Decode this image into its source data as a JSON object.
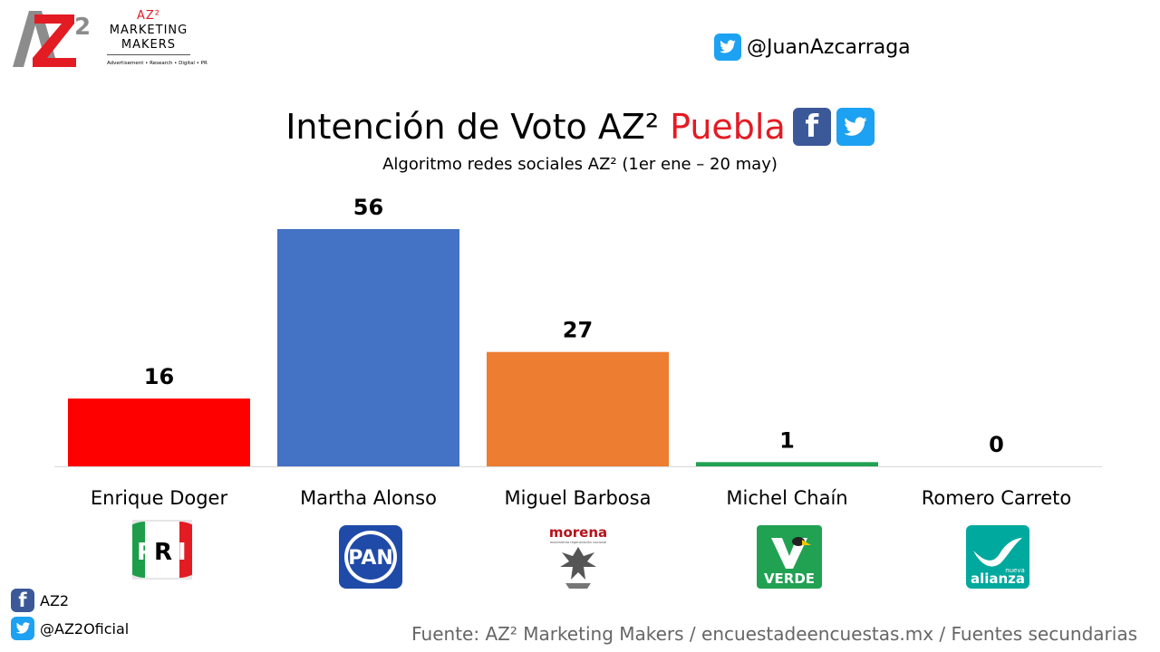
{
  "header": {
    "brand_top": "AZ²",
    "brand_line1": "MARKETING",
    "brand_line2": "MAKERS",
    "brand_tagline": "Advertisement • Research • Digital • PR",
    "twitter_handle": "@JuanAzcarraga"
  },
  "title": {
    "main": "Intención de Voto AZ²",
    "highlight": "Puebla",
    "subtitle": "Algoritmo redes sociales AZ² (1er ene – 20 may)"
  },
  "chart_data": {
    "type": "bar",
    "title": "Intención de Voto AZ² Puebla",
    "subtitle": "Algoritmo redes sociales AZ² (1er ene – 20 may)",
    "categories": [
      "Enrique Doger",
      "Martha Alonso",
      "Miguel Barbosa",
      "Michel Chaín",
      "Romero Carreto"
    ],
    "values": [
      16,
      56,
      27,
      1,
      0
    ],
    "colors": [
      "#ff0000",
      "#4472c4",
      "#ed7d31",
      "#21a152",
      "#00a99d"
    ],
    "parties": [
      "PRI",
      "PAN",
      "morena",
      "VERDE",
      "alianza"
    ],
    "party_logos": {
      "pri_letters": [
        "P",
        "R",
        "I"
      ],
      "pan": "PAN",
      "morena_top": "morena",
      "morena_sub": "movimiento regeneración nacional",
      "verde": "VERDE",
      "nueva": "nueva",
      "alianza": "alianza"
    },
    "ylim": [
      0,
      56
    ],
    "grid": false,
    "legend": "none",
    "data_labels": true
  },
  "footer": {
    "facebook": "AZ2",
    "twitter": "@AZ2Oficial",
    "source": "Fuente: AZ² Marketing Makers / encuestadeencuestas.mx / Fuentes secundarias"
  }
}
